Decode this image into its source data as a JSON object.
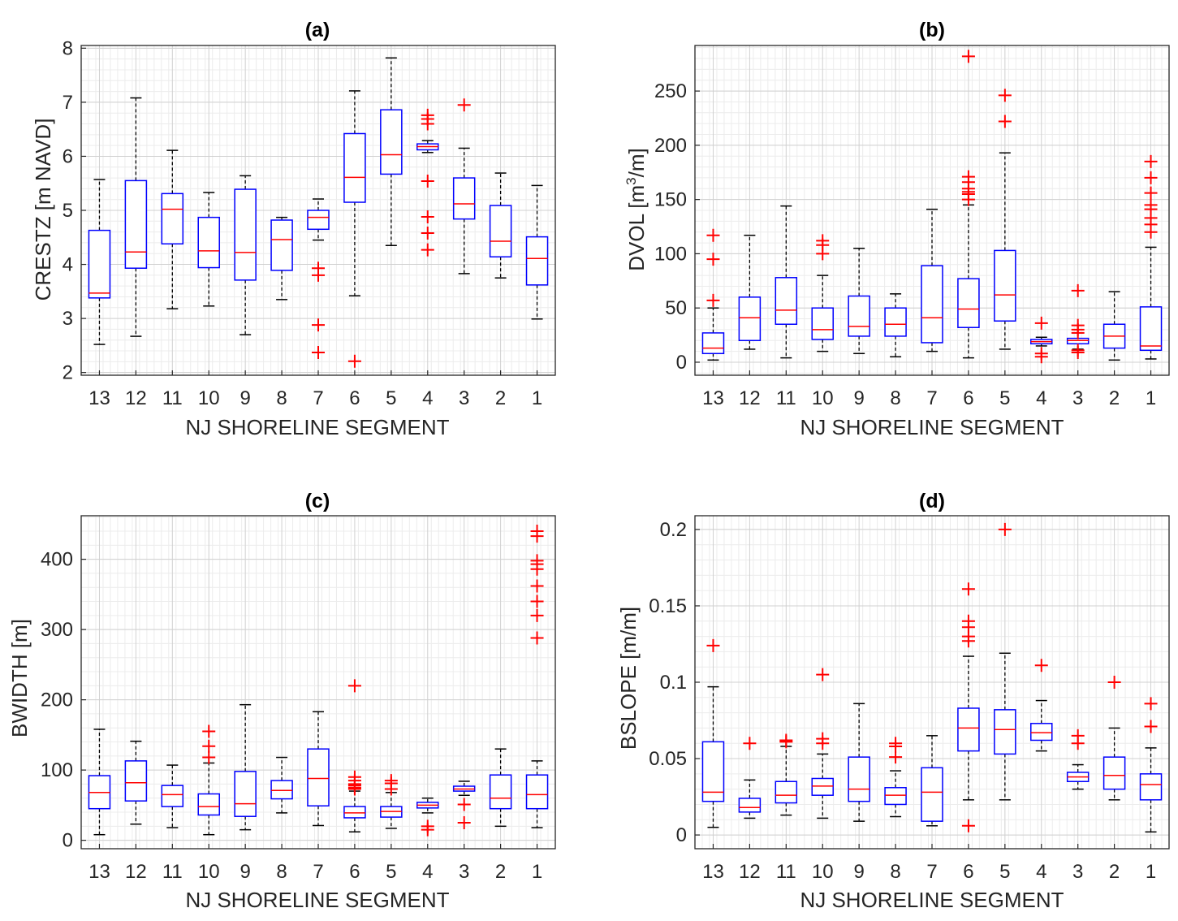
{
  "chart_data": [
    {
      "type": "box",
      "title": "(a)",
      "xlabel": "NJ SHORELINE SEGMENT",
      "ylabel": "CRESTZ [m NAVD]",
      "ylim": [
        1.95,
        8.05
      ],
      "yticks": [
        2,
        3,
        4,
        5,
        6,
        7,
        8
      ],
      "grid": "on (major and minor)",
      "categories": [
        "13",
        "12",
        "11",
        "10",
        "9",
        "8",
        "7",
        "6",
        "5",
        "4",
        "3",
        "2",
        "1"
      ],
      "boxes": [
        {
          "min": 2.52,
          "q1": 3.38,
          "median": 3.47,
          "q3": 4.63,
          "max": 5.57,
          "outliers": []
        },
        {
          "min": 2.67,
          "q1": 3.93,
          "median": 4.23,
          "q3": 5.55,
          "max": 7.08,
          "outliers": []
        },
        {
          "min": 3.18,
          "q1": 4.38,
          "median": 5.02,
          "q3": 5.31,
          "max": 6.11,
          "outliers": []
        },
        {
          "min": 3.23,
          "q1": 3.94,
          "median": 4.25,
          "q3": 4.87,
          "max": 5.33,
          "outliers": []
        },
        {
          "min": 2.7,
          "q1": 3.71,
          "median": 4.22,
          "q3": 5.39,
          "max": 5.64,
          "outliers": []
        },
        {
          "min": 3.35,
          "q1": 3.89,
          "median": 4.46,
          "q3": 4.82,
          "max": 4.87,
          "outliers": []
        },
        {
          "min": 4.45,
          "q1": 4.65,
          "median": 4.87,
          "q3": 5.0,
          "max": 5.21,
          "outliers": [
            3.93,
            3.8,
            2.88,
            2.37
          ]
        },
        {
          "min": 3.42,
          "q1": 5.15,
          "median": 5.61,
          "q3": 6.42,
          "max": 7.21,
          "outliers": [
            2.21
          ]
        },
        {
          "min": 4.35,
          "q1": 5.67,
          "median": 6.03,
          "q3": 6.86,
          "max": 7.82,
          "outliers": []
        },
        {
          "min": 6.07,
          "q1": 6.12,
          "median": 6.18,
          "q3": 6.23,
          "max": 6.29,
          "outliers": [
            6.76,
            6.69,
            6.6,
            5.54,
            4.88,
            4.58,
            4.27
          ]
        },
        {
          "min": 3.83,
          "q1": 4.84,
          "median": 5.12,
          "q3": 5.6,
          "max": 6.15,
          "outliers": [
            6.95
          ]
        },
        {
          "min": 3.75,
          "q1": 4.14,
          "median": 4.43,
          "q3": 5.09,
          "max": 5.69,
          "outliers": []
        },
        {
          "min": 2.99,
          "q1": 3.62,
          "median": 4.11,
          "q3": 4.51,
          "max": 5.46,
          "outliers": []
        }
      ]
    },
    {
      "type": "box",
      "title": "(b)",
      "xlabel": "NJ SHORELINE SEGMENT",
      "ylabel": "DVOL [m3/m]",
      "ylabel_parts": {
        "base": "DVOL [m",
        "sup": "3",
        "tail": "/m]"
      },
      "ylim": [
        -12,
        292
      ],
      "yticks": [
        0,
        50,
        100,
        150,
        200,
        250
      ],
      "grid": "on (major and minor)",
      "categories": [
        "13",
        "12",
        "11",
        "10",
        "9",
        "8",
        "7",
        "6",
        "5",
        "4",
        "3",
        "2",
        "1"
      ],
      "boxes": [
        {
          "min": 2,
          "q1": 8,
          "median": 13,
          "q3": 27,
          "max": 50,
          "outliers": [
            117,
            95,
            57
          ]
        },
        {
          "min": 12,
          "q1": 20,
          "median": 41,
          "q3": 60,
          "max": 117,
          "outliers": []
        },
        {
          "min": 4,
          "q1": 35,
          "median": 48,
          "q3": 78,
          "max": 144,
          "outliers": []
        },
        {
          "min": 10,
          "q1": 21,
          "median": 30,
          "q3": 50,
          "max": 80,
          "outliers": [
            112,
            108,
            100
          ]
        },
        {
          "min": 8,
          "q1": 24,
          "median": 33,
          "q3": 61,
          "max": 105,
          "outliers": []
        },
        {
          "min": 5,
          "q1": 24,
          "median": 35,
          "q3": 50,
          "max": 63,
          "outliers": []
        },
        {
          "min": 10,
          "q1": 18,
          "median": 41,
          "q3": 89,
          "max": 141,
          "outliers": []
        },
        {
          "min": 4,
          "q1": 32,
          "median": 49,
          "q3": 77,
          "max": 145,
          "outliers": [
            282,
            171,
            166,
            160,
            157,
            155,
            150
          ]
        },
        {
          "min": 12,
          "q1": 38,
          "median": 62,
          "q3": 103,
          "max": 193,
          "outliers": [
            246,
            222
          ]
        },
        {
          "min": 15,
          "q1": 17,
          "median": 19,
          "q3": 21,
          "max": 23,
          "outliers": [
            36,
            8,
            5
          ]
        },
        {
          "min": 12,
          "q1": 17,
          "median": 20,
          "q3": 22,
          "max": 27,
          "outliers": [
            66,
            34,
            30,
            27,
            11,
            9
          ]
        },
        {
          "min": 2,
          "q1": 13,
          "median": 24,
          "q3": 35,
          "max": 65,
          "outliers": []
        },
        {
          "min": 3,
          "q1": 11,
          "median": 15,
          "q3": 51,
          "max": 106,
          "outliers": [
            185,
            170,
            156,
            145,
            141,
            133,
            127,
            120
          ]
        }
      ]
    },
    {
      "type": "box",
      "title": "(c)",
      "xlabel": "NJ SHORELINE SEGMENT",
      "ylabel": "BWIDTH [m]",
      "ylim": [
        -12,
        462
      ],
      "yticks": [
        0,
        100,
        200,
        300,
        400
      ],
      "grid": "on (major and minor)",
      "categories": [
        "13",
        "12",
        "11",
        "10",
        "9",
        "8",
        "7",
        "6",
        "5",
        "4",
        "3",
        "2",
        "1"
      ],
      "boxes": [
        {
          "min": 8,
          "q1": 45,
          "median": 68,
          "q3": 92,
          "max": 158,
          "outliers": []
        },
        {
          "min": 23,
          "q1": 56,
          "median": 82,
          "q3": 113,
          "max": 141,
          "outliers": []
        },
        {
          "min": 18,
          "q1": 48,
          "median": 65,
          "q3": 78,
          "max": 107,
          "outliers": []
        },
        {
          "min": 8,
          "q1": 36,
          "median": 48,
          "q3": 66,
          "max": 110,
          "outliers": [
            155,
            134,
            118
          ]
        },
        {
          "min": 15,
          "q1": 34,
          "median": 52,
          "q3": 98,
          "max": 193,
          "outliers": []
        },
        {
          "min": 39,
          "q1": 59,
          "median": 71,
          "q3": 85,
          "max": 118,
          "outliers": []
        },
        {
          "min": 21,
          "q1": 49,
          "median": 88,
          "q3": 130,
          "max": 183,
          "outliers": []
        },
        {
          "min": 12,
          "q1": 32,
          "median": 39,
          "q3": 48,
          "max": 70,
          "outliers": [
            220,
            90,
            85,
            80,
            78,
            75,
            73
          ]
        },
        {
          "min": 17,
          "q1": 33,
          "median": 41,
          "q3": 48,
          "max": 68,
          "outliers": [
            85,
            81,
            73
          ]
        },
        {
          "min": 39,
          "q1": 46,
          "median": 50,
          "q3": 54,
          "max": 60,
          "outliers": [
            20,
            15
          ]
        },
        {
          "min": 64,
          "q1": 70,
          "median": 73,
          "q3": 77,
          "max": 84,
          "outliers": [
            51,
            25
          ]
        },
        {
          "min": 20,
          "q1": 45,
          "median": 60,
          "q3": 93,
          "max": 130,
          "outliers": []
        },
        {
          "min": 18,
          "q1": 45,
          "median": 65,
          "q3": 93,
          "max": 113,
          "outliers": [
            440,
            433,
            398,
            393,
            386,
            362,
            340,
            320,
            288
          ]
        }
      ]
    },
    {
      "type": "box",
      "title": "(d)",
      "xlabel": "NJ SHORELINE SEGMENT",
      "ylabel": "BSLOPE [m/m]",
      "ylim": [
        -0.009,
        0.209
      ],
      "yticks": [
        0,
        0.05,
        0.1,
        0.15,
        0.2
      ],
      "ytick_labels": [
        "0",
        "0.05",
        "0.1",
        "0.15",
        "0.2"
      ],
      "grid": "on (major and minor)",
      "categories": [
        "13",
        "12",
        "11",
        "10",
        "9",
        "8",
        "7",
        "6",
        "5",
        "4",
        "3",
        "2",
        "1"
      ],
      "boxes": [
        {
          "min": 0.005,
          "q1": 0.022,
          "median": 0.028,
          "q3": 0.061,
          "max": 0.097,
          "outliers": [
            0.124
          ]
        },
        {
          "min": 0.011,
          "q1": 0.015,
          "median": 0.018,
          "q3": 0.024,
          "max": 0.036,
          "outliers": [
            0.06
          ]
        },
        {
          "min": 0.013,
          "q1": 0.021,
          "median": 0.026,
          "q3": 0.035,
          "max": 0.058,
          "outliers": [
            0.062,
            0.061
          ]
        },
        {
          "min": 0.011,
          "q1": 0.026,
          "median": 0.032,
          "q3": 0.037,
          "max": 0.053,
          "outliers": [
            0.105,
            0.063,
            0.06
          ]
        },
        {
          "min": 0.009,
          "q1": 0.022,
          "median": 0.03,
          "q3": 0.051,
          "max": 0.086,
          "outliers": []
        },
        {
          "min": 0.012,
          "q1": 0.02,
          "median": 0.026,
          "q3": 0.031,
          "max": 0.042,
          "outliers": [
            0.06,
            0.058,
            0.051
          ]
        },
        {
          "min": 0.006,
          "q1": 0.009,
          "median": 0.028,
          "q3": 0.044,
          "max": 0.065,
          "outliers": []
        },
        {
          "min": 0.023,
          "q1": 0.055,
          "median": 0.07,
          "q3": 0.083,
          "max": 0.117,
          "outliers": [
            0.161,
            0.14,
            0.136,
            0.13,
            0.127,
            0.006
          ]
        },
        {
          "min": 0.023,
          "q1": 0.053,
          "median": 0.069,
          "q3": 0.082,
          "max": 0.119,
          "outliers": [
            0.2
          ]
        },
        {
          "min": 0.055,
          "q1": 0.062,
          "median": 0.067,
          "q3": 0.073,
          "max": 0.088,
          "outliers": [
            0.111
          ]
        },
        {
          "min": 0.03,
          "q1": 0.035,
          "median": 0.038,
          "q3": 0.041,
          "max": 0.046,
          "outliers": [
            0.065,
            0.06
          ]
        },
        {
          "min": 0.023,
          "q1": 0.03,
          "median": 0.039,
          "q3": 0.051,
          "max": 0.07,
          "outliers": [
            0.1
          ]
        },
        {
          "min": 0.002,
          "q1": 0.023,
          "median": 0.033,
          "q3": 0.04,
          "max": 0.057,
          "outliers": [
            0.086,
            0.071
          ]
        }
      ]
    }
  ],
  "colors": {
    "box": "#0000ff",
    "median": "#ff0000",
    "outlier": "#ff0000",
    "whisker": "#000000",
    "grid_major": "#d0d0d0",
    "grid_minor": "#ececec",
    "axes": "#262626"
  }
}
